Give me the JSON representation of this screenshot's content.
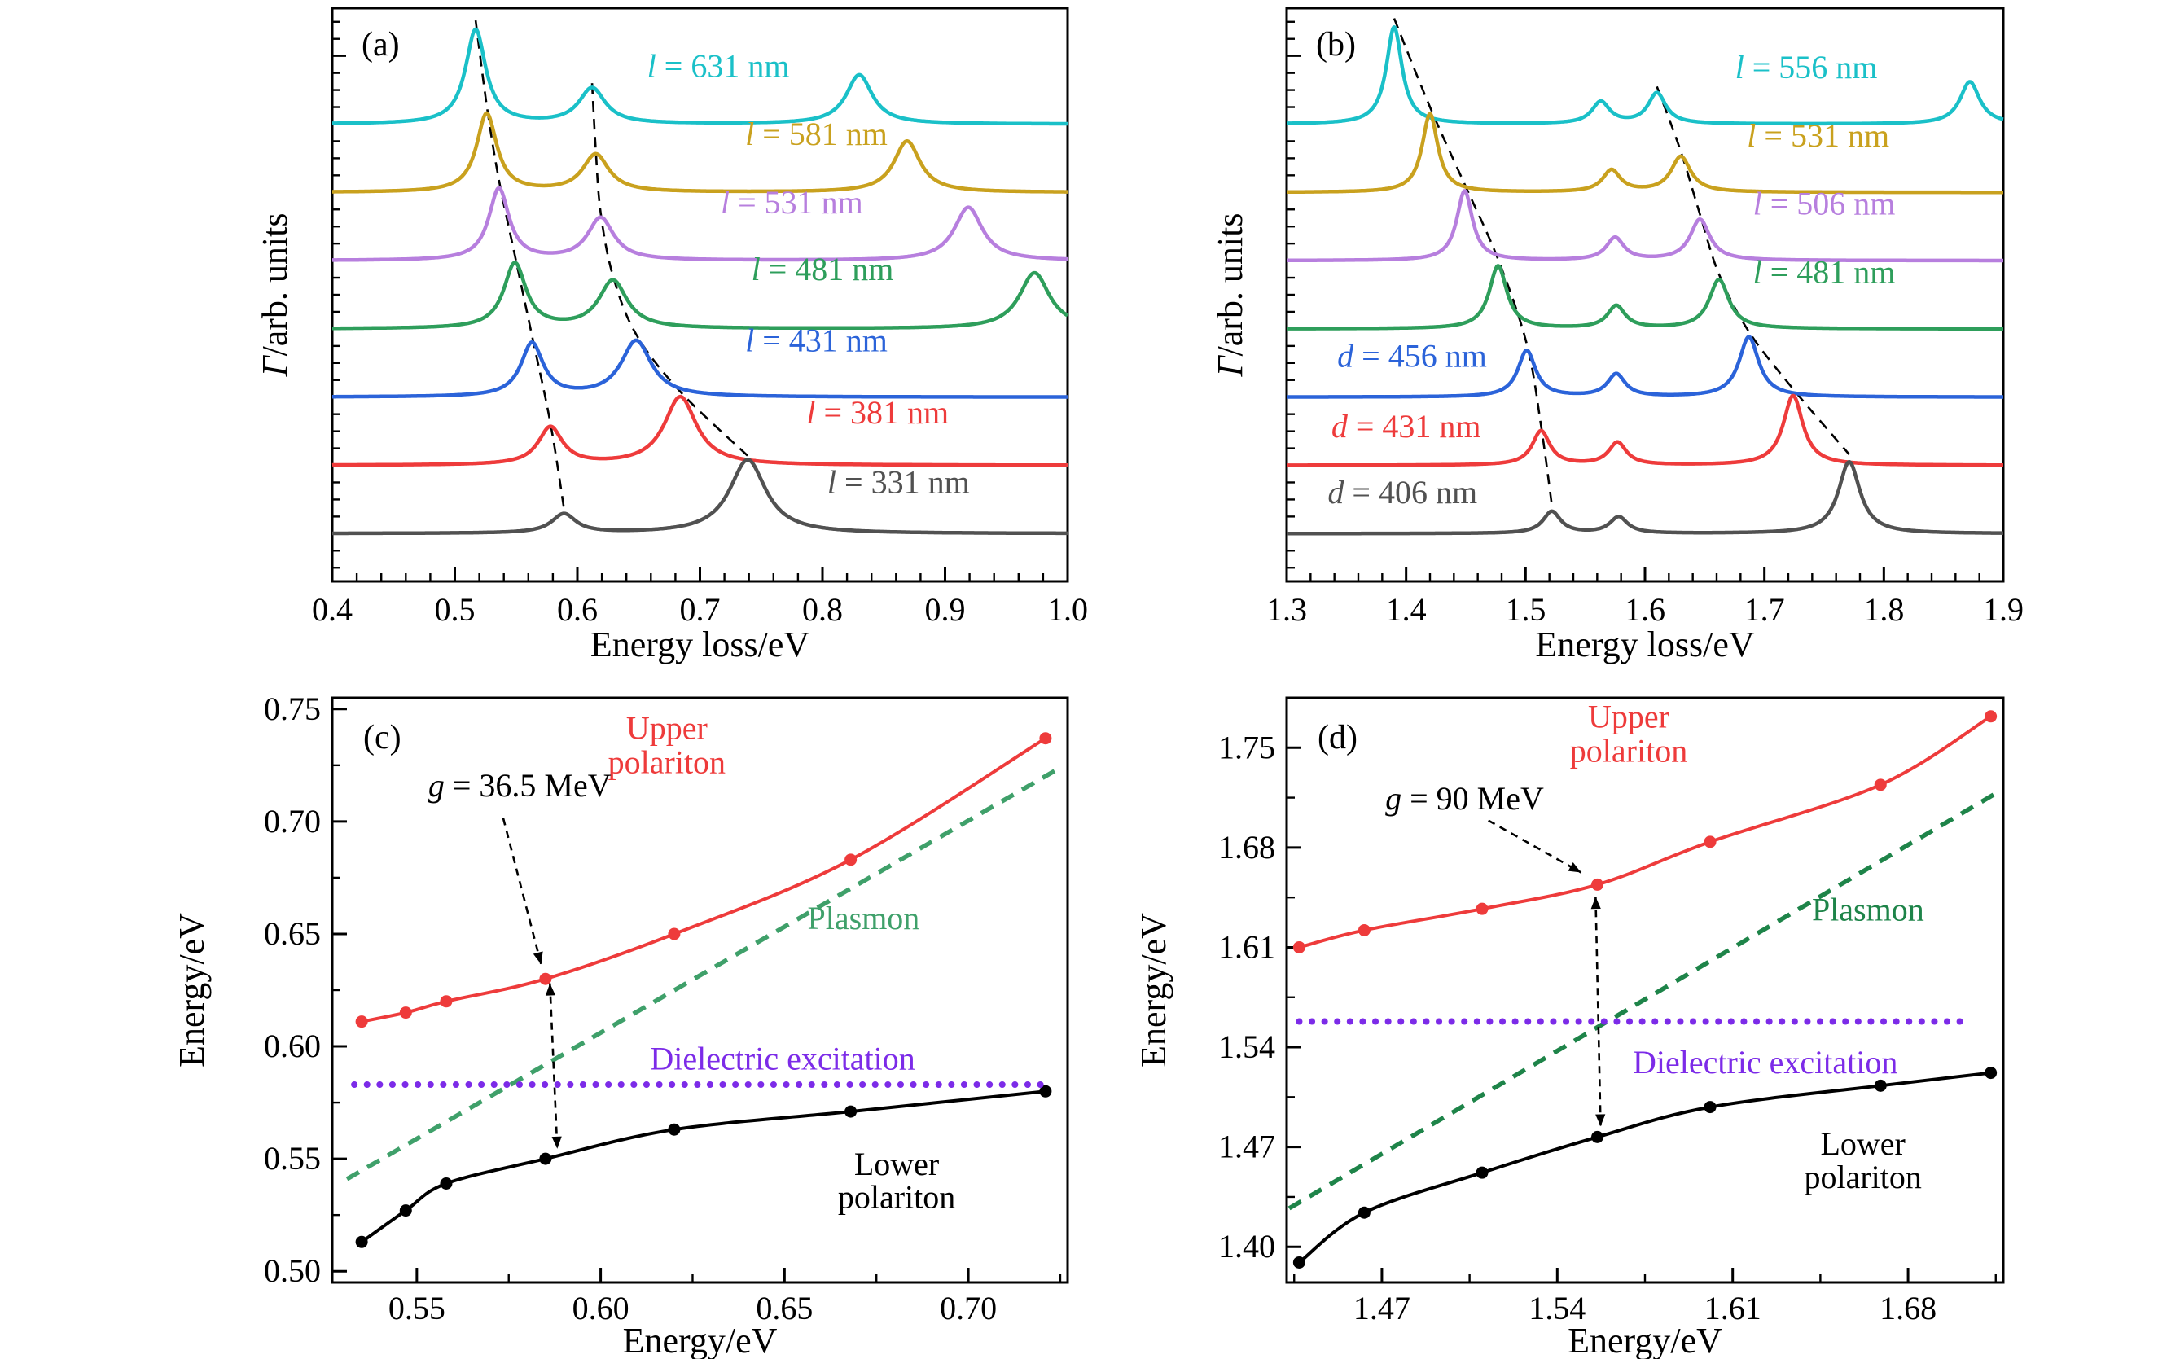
{
  "page": {
    "background": "#ffffff"
  },
  "chart_data": [
    {
      "id": "panel-a",
      "render": "spectra",
      "type": "line",
      "panel_label": "(a)",
      "xlabel": "Energy loss/eV",
      "ylabel_var": "Γ",
      "ylabel_rest": "/arb. units",
      "xlim": [
        0.4,
        1.0
      ],
      "xticks": [
        0.4,
        0.5,
        0.6,
        0.7,
        0.8,
        0.9,
        1.0
      ],
      "xtick_labels": [
        "0.4",
        "0.5",
        "0.6",
        "0.7",
        "0.8",
        "0.9",
        "1.0"
      ],
      "x_minor_step": 0.02,
      "ylim_units": [
        -0.7,
        7.7
      ],
      "series": [
        {
          "label_var": "l",
          "label_rest": " = 631 nm",
          "color": "#1ac0c8",
          "offset": 6,
          "peaks": [
            [
              0.517,
              1.38,
              0.01
            ],
            [
              0.612,
              0.52,
              0.013
            ],
            [
              0.83,
              0.72,
              0.013
            ]
          ],
          "label_x": 0.715,
          "label_y": 6.8
        },
        {
          "label_var": "l",
          "label_rest": " = 581 nm",
          "color": "#c9a11e",
          "offset": 5,
          "peaks": [
            [
              0.526,
              1.15,
              0.01
            ],
            [
              0.615,
              0.55,
              0.013
            ],
            [
              0.869,
              0.75,
              0.013
            ]
          ],
          "label_x": 0.795,
          "label_y": 5.8
        },
        {
          "label_var": "l",
          "label_rest": " = 531 nm",
          "color": "#b77fde",
          "offset": 4,
          "peaks": [
            [
              0.536,
              1.05,
              0.01
            ],
            [
              0.619,
              0.62,
              0.013
            ],
            [
              0.919,
              0.78,
              0.014
            ]
          ],
          "label_x": 0.775,
          "label_y": 4.8
        },
        {
          "label_var": "l",
          "label_rest": " = 481 nm",
          "color": "#2e9e5b",
          "offset": 3,
          "peaks": [
            [
              0.549,
              0.95,
              0.011
            ],
            [
              0.629,
              0.7,
              0.014
            ],
            [
              0.973,
              0.82,
              0.015
            ]
          ],
          "label_x": 0.8,
          "label_y": 3.82
        },
        {
          "label_var": "l",
          "label_rest": " = 431 nm",
          "color": "#2b63d9",
          "offset": 2,
          "peaks": [
            [
              0.563,
              0.78,
              0.011
            ],
            [
              0.648,
              0.82,
              0.015
            ]
          ],
          "label_x": 0.795,
          "label_y": 2.78
        },
        {
          "label_var": "l",
          "label_rest": " = 381 nm",
          "color": "#ee3b3b",
          "offset": 1,
          "peaks": [
            [
              0.578,
              0.55,
              0.012
            ],
            [
              0.684,
              1.0,
              0.016
            ]
          ],
          "label_x": 0.845,
          "label_y": 1.72
        },
        {
          "label_var": "l",
          "label_rest": " = 331 nm",
          "color": "#515151",
          "offset": 0,
          "peaks": [
            [
              0.589,
              0.28,
              0.012
            ],
            [
              0.739,
              1.08,
              0.018
            ]
          ],
          "label_x": 0.862,
          "label_y": 0.7
        }
      ],
      "trace_lines": [
        [
          [
            0.517,
            7.52
          ],
          [
            0.526,
            6.28
          ],
          [
            0.536,
            5.18
          ],
          [
            0.549,
            4.08
          ],
          [
            0.563,
            2.9
          ],
          [
            0.578,
            1.62
          ],
          [
            0.589,
            0.38
          ]
        ],
        [
          [
            0.612,
            6.6
          ],
          [
            0.615,
            5.62
          ],
          [
            0.619,
            4.7
          ],
          [
            0.629,
            3.78
          ],
          [
            0.648,
            2.92
          ],
          [
            0.684,
            2.08
          ],
          [
            0.739,
            1.14
          ]
        ]
      ]
    },
    {
      "id": "panel-b",
      "render": "spectra",
      "type": "line",
      "panel_label": "(b)",
      "xlabel": "Energy loss/eV",
      "ylabel_var": "Γ",
      "ylabel_rest": "/arb. units",
      "xlim": [
        1.3,
        1.9
      ],
      "xticks": [
        1.3,
        1.4,
        1.5,
        1.6,
        1.7,
        1.8,
        1.9
      ],
      "xtick_labels": [
        "1.3",
        "1.4",
        "1.5",
        "1.6",
        "1.7",
        "1.8",
        "1.9"
      ],
      "x_minor_step": 0.02,
      "ylim_units": [
        -0.7,
        7.7
      ],
      "series": [
        {
          "label_var": "l",
          "label_rest": " = 556 nm",
          "color": "#1ac0c8",
          "offset": 6,
          "peaks": [
            [
              1.39,
              1.42,
              0.008
            ],
            [
              1.563,
              0.32,
              0.009
            ],
            [
              1.61,
              0.45,
              0.009
            ],
            [
              1.872,
              0.62,
              0.01
            ]
          ],
          "label_x": 1.735,
          "label_y": 6.78
        },
        {
          "label_var": "l",
          "label_rest": " = 531 nm",
          "color": "#c9a11e",
          "offset": 5,
          "peaks": [
            [
              1.42,
              1.15,
              0.008
            ],
            [
              1.572,
              0.32,
              0.009
            ],
            [
              1.63,
              0.52,
              0.01
            ]
          ],
          "label_x": 1.745,
          "label_y": 5.78
        },
        {
          "label_var": "l",
          "label_rest": " = 506 nm",
          "color": "#b77fde",
          "offset": 4,
          "peaks": [
            [
              1.449,
              1.02,
              0.008
            ],
            [
              1.575,
              0.33,
              0.009
            ],
            [
              1.646,
              0.6,
              0.01
            ]
          ],
          "label_x": 1.75,
          "label_y": 4.78
        },
        {
          "label_var": "l",
          "label_rest": " = 481 nm",
          "color": "#2e9e5b",
          "offset": 3,
          "peaks": [
            [
              1.477,
              0.92,
              0.009
            ],
            [
              1.576,
              0.33,
              0.009
            ],
            [
              1.662,
              0.72,
              0.01
            ]
          ],
          "label_x": 1.75,
          "label_y": 3.78
        },
        {
          "label_var": "d",
          "label_rest": " = 456 nm",
          "color": "#2b63d9",
          "offset": 2,
          "peaks": [
            [
              1.501,
              0.68,
              0.009
            ],
            [
              1.576,
              0.33,
              0.009
            ],
            [
              1.687,
              0.88,
              0.01
            ]
          ],
          "label_x": 1.405,
          "label_y": 2.55
        },
        {
          "label_var": "d",
          "label_rest": " = 431 nm",
          "color": "#ee3b3b",
          "offset": 1,
          "peaks": [
            [
              1.513,
              0.5,
              0.009
            ],
            [
              1.577,
              0.33,
              0.009
            ],
            [
              1.724,
              1.02,
              0.01
            ]
          ],
          "label_x": 1.4,
          "label_y": 1.52
        },
        {
          "label_var": "d",
          "label_rest": " = 406 nm",
          "color": "#515151",
          "offset": 0,
          "peaks": [
            [
              1.522,
              0.32,
              0.009
            ],
            [
              1.578,
              0.24,
              0.009
            ],
            [
              1.771,
              1.05,
              0.011
            ]
          ],
          "label_x": 1.397,
          "label_y": 0.55
        }
      ],
      "trace_lines": [
        [
          [
            1.39,
            7.55
          ],
          [
            1.42,
            6.25
          ],
          [
            1.449,
            5.12
          ],
          [
            1.477,
            4.02
          ],
          [
            1.501,
            2.78
          ],
          [
            1.513,
            1.58
          ],
          [
            1.522,
            0.42
          ]
        ],
        [
          [
            1.61,
            6.55
          ],
          [
            1.63,
            5.6
          ],
          [
            1.646,
            4.68
          ],
          [
            1.662,
            3.8
          ],
          [
            1.687,
            2.96
          ],
          [
            1.724,
            2.12
          ],
          [
            1.771,
            1.16
          ]
        ]
      ]
    },
    {
      "id": "panel-c",
      "render": "dispersion",
      "type": "scatter",
      "panel_label": "(c)",
      "xlabel": "Energy/eV",
      "ylabel": "Energy/eV",
      "xlim": [
        0.527,
        0.727
      ],
      "ylim": [
        0.495,
        0.755
      ],
      "xticks": [
        0.55,
        0.6,
        0.65,
        0.7
      ],
      "xtick_labels": [
        "0.55",
        "0.60",
        "0.65",
        "0.70"
      ],
      "yticks": [
        0.5,
        0.55,
        0.6,
        0.65,
        0.7,
        0.75
      ],
      "ytick_labels": [
        "0.50",
        "0.55",
        "0.60",
        "0.65",
        "0.70",
        "0.75"
      ],
      "series": [
        {
          "name": "Upper polariton",
          "style": "solid-dots",
          "color": "#ee3b3b",
          "x": [
            0.535,
            0.547,
            0.558,
            0.585,
            0.62,
            0.668,
            0.721
          ],
          "y": [
            0.611,
            0.615,
            0.62,
            0.63,
            0.65,
            0.683,
            0.737
          ]
        },
        {
          "name": "Lower polariton",
          "style": "solid-dots",
          "color": "#000000",
          "x": [
            0.535,
            0.547,
            0.558,
            0.585,
            0.62,
            0.668,
            0.721
          ],
          "y": [
            0.513,
            0.527,
            0.539,
            0.55,
            0.563,
            0.571,
            0.58
          ]
        },
        {
          "name": "Plasmon",
          "style": "dashed",
          "color": "#3fa06a",
          "x": [
            0.531,
            0.724
          ],
          "y": [
            0.541,
            0.723
          ]
        },
        {
          "name": "Dielectric excitation",
          "style": "dotted",
          "color": "#7c2be8",
          "x": [
            0.533,
            0.721
          ],
          "y": [
            0.583,
            0.583
          ]
        }
      ],
      "labels": [
        {
          "text": "Upper",
          "color": "#ee3b3b",
          "x": 0.618,
          "y": 0.74
        },
        {
          "text": "polariton",
          "color": "#ee3b3b",
          "x": 0.618,
          "y": 0.7248
        },
        {
          "text": "Plasmon",
          "color": "#3fa06a",
          "x": 0.6715,
          "y": 0.6555
        },
        {
          "text": "Dielectric excitation",
          "color": "#7c2be8",
          "x": 0.6495,
          "y": 0.593
        },
        {
          "text": "Lower",
          "color": "#000000",
          "x": 0.6805,
          "y": 0.5462
        },
        {
          "text": "polariton",
          "color": "#000000",
          "x": 0.6805,
          "y": 0.5315
        }
      ],
      "annotation": {
        "var": "g",
        "rest": " = 36.5 MeV",
        "x": 0.578,
        "y": 0.7145,
        "pointer": [
          [
            0.5735,
            0.7015
          ],
          [
            0.5838,
            0.6365
          ]
        ],
        "span_arrow": [
          [
            0.5862,
            0.628
          ],
          [
            0.5882,
            0.5545
          ]
        ]
      }
    },
    {
      "id": "panel-d",
      "render": "dispersion",
      "type": "scatter",
      "panel_label": "(d)",
      "xlabel": "Energy/eV",
      "ylabel": "Energy/eV",
      "xlim": [
        1.432,
        1.718
      ],
      "ylim": [
        1.375,
        1.785
      ],
      "xticks": [
        1.47,
        1.54,
        1.61,
        1.68
      ],
      "xtick_labels": [
        "1.47",
        "1.54",
        "1.61",
        "1.68"
      ],
      "yticks": [
        1.4,
        1.47,
        1.54,
        1.61,
        1.68,
        1.75
      ],
      "ytick_labels": [
        "1.40",
        "1.47",
        "1.54",
        "1.61",
        "1.68",
        "1.75"
      ],
      "series": [
        {
          "name": "Upper polariton",
          "style": "solid-dots",
          "color": "#ee3b3b",
          "x": [
            1.437,
            1.463,
            1.51,
            1.556,
            1.601,
            1.669,
            1.713
          ],
          "y": [
            1.61,
            1.622,
            1.637,
            1.654,
            1.684,
            1.724,
            1.772
          ]
        },
        {
          "name": "Lower polariton",
          "style": "solid-dots",
          "color": "#000000",
          "x": [
            1.437,
            1.463,
            1.51,
            1.556,
            1.601,
            1.669,
            1.713
          ],
          "y": [
            1.389,
            1.424,
            1.452,
            1.477,
            1.498,
            1.513,
            1.522
          ]
        },
        {
          "name": "Plasmon",
          "style": "dashed",
          "color": "#1e8449",
          "x": [
            1.433,
            1.716
          ],
          "y": [
            1.427,
            1.719
          ]
        },
        {
          "name": "Dielectric excitation",
          "style": "dotted",
          "color": "#7c2be8",
          "x": [
            1.437,
            1.703
          ],
          "y": [
            1.558,
            1.558
          ]
        }
      ],
      "labels": [
        {
          "text": "Upper",
          "color": "#ee3b3b",
          "x": 1.5685,
          "y": 1.7695
        },
        {
          "text": "polariton",
          "color": "#ee3b3b",
          "x": 1.5685,
          "y": 1.7455
        },
        {
          "text": "Plasmon",
          "color": "#1e8449",
          "x": 1.664,
          "y": 1.634
        },
        {
          "text": "Dielectric excitation",
          "color": "#7c2be8",
          "x": 1.623,
          "y": 1.527
        },
        {
          "text": "Lower",
          "color": "#000000",
          "x": 1.662,
          "y": 1.47
        },
        {
          "text": "polariton",
          "color": "#000000",
          "x": 1.662,
          "y": 1.4465
        }
      ],
      "annotation": {
        "var": "g",
        "rest": " = 90 MeV",
        "x": 1.503,
        "y": 1.712,
        "pointer": [
          [
            1.5125,
            1.699
          ],
          [
            1.5495,
            1.6625
          ]
        ],
        "span_arrow": [
          [
            1.5553,
            1.6455
          ],
          [
            1.5573,
            1.4845
          ]
        ]
      }
    }
  ]
}
